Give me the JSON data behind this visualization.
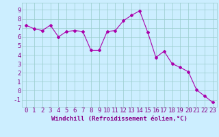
{
  "x": [
    0,
    1,
    2,
    3,
    4,
    5,
    6,
    7,
    8,
    9,
    10,
    11,
    12,
    13,
    14,
    15,
    16,
    17,
    18,
    19,
    20,
    21,
    22,
    23
  ],
  "y": [
    7.3,
    6.9,
    6.7,
    7.3,
    6.0,
    6.6,
    6.7,
    6.6,
    4.5,
    4.5,
    6.6,
    6.7,
    7.8,
    8.4,
    8.9,
    6.5,
    3.7,
    4.4,
    3.0,
    2.6,
    2.1,
    0.1,
    -0.6,
    -1.3
  ],
  "line_color": "#aa00aa",
  "marker": "D",
  "marker_size": 2.0,
  "bg_color": "#cceeff",
  "grid_color": "#99cccc",
  "xlabel": "Windchill (Refroidissement éolien,°C)",
  "ylabel_ticks": [
    -1,
    0,
    1,
    2,
    3,
    4,
    5,
    6,
    7,
    8,
    9
  ],
  "xlim": [
    -0.5,
    23.5
  ],
  "ylim": [
    -1.8,
    9.8
  ],
  "xlabel_fontsize": 6.5,
  "tick_fontsize": 6.5,
  "label_color": "#880088"
}
